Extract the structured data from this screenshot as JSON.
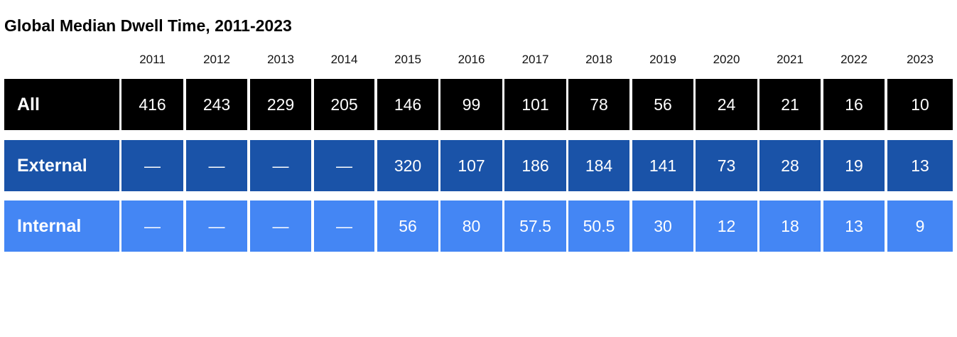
{
  "colors": {
    "all": "#000000",
    "external": "#1a53a8",
    "internal": "#4486f4",
    "text_on_fill": "#ffffff",
    "gap": "#ffffff"
  },
  "chart_data": {
    "type": "table",
    "title": "Global Median Dwell Time, 2011-2023",
    "columns": [
      "2011",
      "2012",
      "2013",
      "2014",
      "2015",
      "2016",
      "2017",
      "2018",
      "2019",
      "2020",
      "2021",
      "2022",
      "2023"
    ],
    "rows": [
      {
        "label": "All",
        "color": "#000000",
        "values": [
          "416",
          "243",
          "229",
          "205",
          "146",
          "99",
          "101",
          "78",
          "56",
          "24",
          "21",
          "16",
          "10"
        ]
      },
      {
        "label": "External",
        "color": "#1a53a8",
        "values": [
          "—",
          "—",
          "—",
          "—",
          "320",
          "107",
          "186",
          "184",
          "141",
          "73",
          "28",
          "19",
          "13"
        ]
      },
      {
        "label": "Internal",
        "color": "#4486f4",
        "values": [
          "—",
          "—",
          "—",
          "—",
          "56",
          "80",
          "57.5",
          "50.5",
          "30",
          "12",
          "18",
          "13",
          "9"
        ]
      }
    ]
  }
}
